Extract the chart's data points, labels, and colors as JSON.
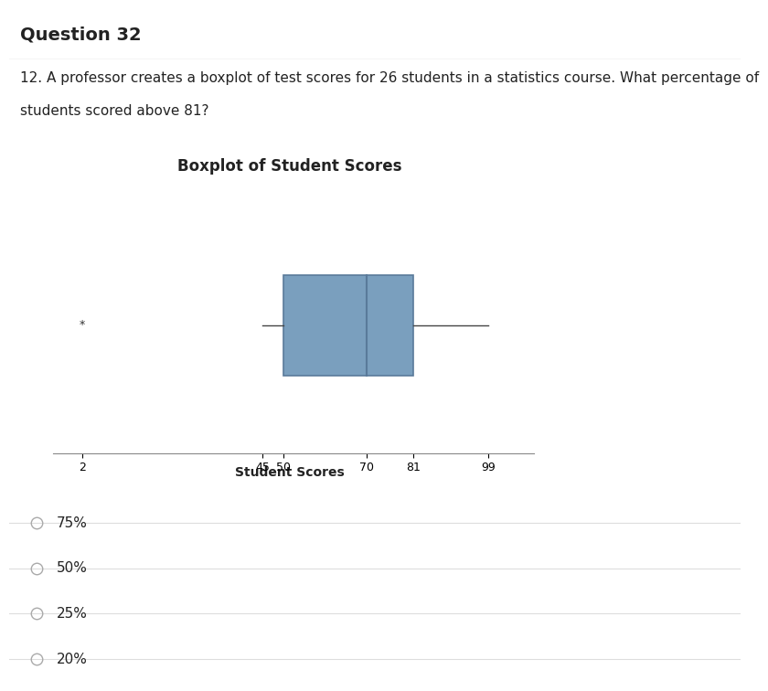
{
  "title": "Boxplot of Student Scores",
  "xlabel": "Student Scores",
  "question_header": "Question 32",
  "question_line1": "12. A professor creates a boxplot of test scores for 26 students in a statistics course. What percentage of",
  "question_line2": "students scored above 81?",
  "outlier": 2,
  "whisker_low": 45,
  "q1": 50,
  "median": 70,
  "q3": 81,
  "whisker_high": 99,
  "xlim": [
    -5,
    110
  ],
  "xticks": [
    2,
    45,
    50,
    70,
    81,
    99
  ],
  "box_facecolor": "#7a9fbe",
  "box_edgecolor": "#5a7a9a",
  "background_page": "#ffffff",
  "background_header": "#f0f0f0",
  "background_chart_outer": "#f5f0e0",
  "background_chart_inner": "#ffffff",
  "choices": [
    "75%",
    "50%",
    "25%",
    "20%"
  ],
  "title_fontsize": 12,
  "label_fontsize": 10,
  "tick_fontsize": 9,
  "question_fontsize": 11,
  "header_fontsize": 14
}
